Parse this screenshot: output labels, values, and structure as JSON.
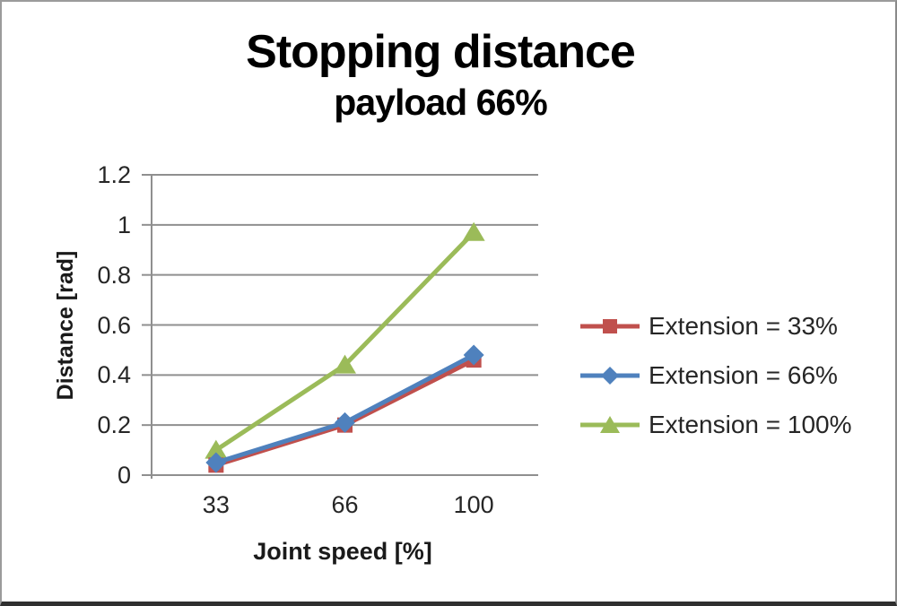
{
  "chart_data": {
    "type": "line",
    "title": "Stopping distance",
    "subtitle": "payload 66%",
    "xlabel": "Joint speed [%]",
    "ylabel": "Distance [rad]",
    "categories": [
      "33",
      "66",
      "100"
    ],
    "series": [
      {
        "name": "Extension = 33%",
        "marker": "square",
        "color": "#C0504D",
        "values": [
          0.04,
          0.2,
          0.46
        ]
      },
      {
        "name": "Extension = 66%",
        "marker": "diamond",
        "color": "#4F81BD",
        "values": [
          0.05,
          0.21,
          0.48
        ]
      },
      {
        "name": "Extension = 100%",
        "marker": "triangle",
        "color": "#9BBB59",
        "values": [
          0.1,
          0.44,
          0.97
        ]
      }
    ],
    "ylim": [
      0,
      1.2
    ],
    "yticks": [
      0,
      0.2,
      0.4,
      0.6,
      0.8,
      1,
      1.2
    ],
    "ytick_labels": [
      "0",
      "0.2",
      "0.4",
      "0.6",
      "0.8",
      "1",
      "1.2"
    ],
    "grid": true,
    "legend_position": "right",
    "draw_order": [
      2,
      0,
      1
    ],
    "colors": {
      "gridline": "#8f8f8f",
      "axis": "#8f8f8f",
      "tick_text": "#262626",
      "title_text": "#000000"
    }
  }
}
